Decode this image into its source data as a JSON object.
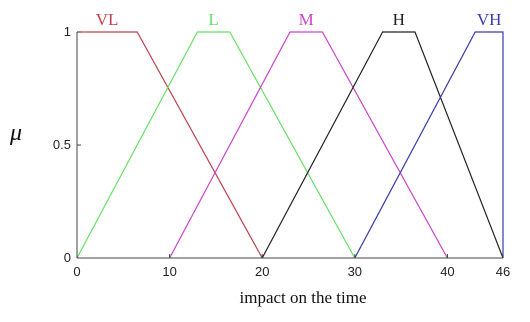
{
  "chart_data": {
    "type": "line",
    "xlabel": "impact on the time",
    "ylabel": "μ",
    "xlim": [
      0,
      46
    ],
    "ylim": [
      0,
      1
    ],
    "x_ticks": [
      {
        "value": 0,
        "label": "0"
      },
      {
        "value": 10,
        "label": "10"
      },
      {
        "value": 20,
        "label": "20"
      },
      {
        "value": 30,
        "label": "30"
      },
      {
        "value": 40,
        "label": "40"
      },
      {
        "value": 46,
        "label": "46"
      }
    ],
    "y_ticks": [
      {
        "value": 0,
        "label": "0"
      },
      {
        "value": 0.5,
        "label": "0.5"
      },
      {
        "value": 1,
        "label": "1"
      }
    ],
    "grid": false,
    "series": [
      {
        "name": "VL",
        "color": "#c0404f",
        "points": [
          [
            0,
            1
          ],
          [
            6.5,
            1
          ],
          [
            20,
            0
          ]
        ]
      },
      {
        "name": "L",
        "color": "#66e066",
        "points": [
          [
            0,
            0
          ],
          [
            13,
            1
          ],
          [
            16.5,
            1
          ],
          [
            30,
            0
          ]
        ]
      },
      {
        "name": "M",
        "color": "#cc44cc",
        "points": [
          [
            10,
            0
          ],
          [
            23,
            1
          ],
          [
            26.5,
            1
          ],
          [
            40,
            0
          ]
        ]
      },
      {
        "name": "H",
        "color": "#222222",
        "points": [
          [
            20,
            0
          ],
          [
            33,
            1
          ],
          [
            36.5,
            1
          ],
          [
            46,
            0
          ]
        ]
      },
      {
        "name": "VH",
        "color": "#3a3aaa",
        "points": [
          [
            30,
            0
          ],
          [
            43,
            1
          ],
          [
            46,
            1
          ],
          [
            46,
            0
          ]
        ]
      }
    ]
  }
}
